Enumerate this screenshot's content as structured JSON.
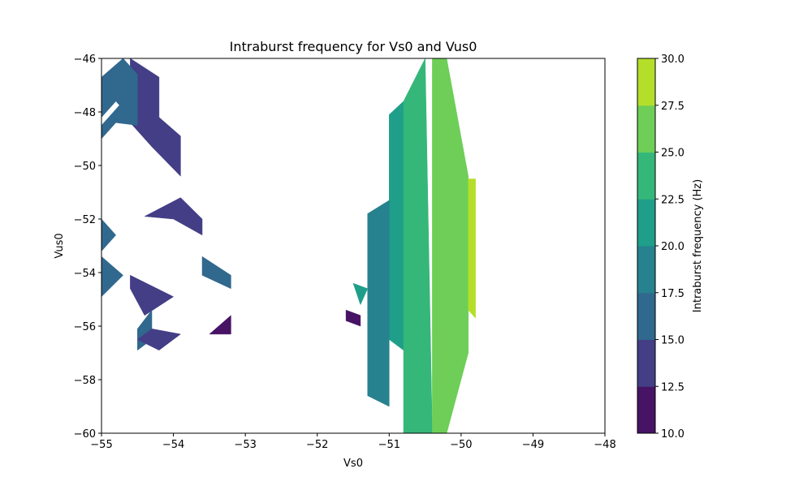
{
  "chart_data": {
    "type": "contourf",
    "title": "Intraburst frequency for Vs0 and Vus0",
    "xlabel": "Vs0",
    "ylabel": "Vus0",
    "xlim": [
      -55,
      -48
    ],
    "ylim": [
      -60,
      -46
    ],
    "xticks": [
      -55,
      -54,
      -53,
      -52,
      -51,
      -50,
      -49,
      -48
    ],
    "yticks": [
      -60,
      -58,
      -56,
      -54,
      -52,
      -50,
      -48,
      -46
    ],
    "grid": false,
    "colorbar": {
      "label": "Intraburst frequency (Hz)",
      "levels": [
        10.0,
        12.5,
        15.0,
        17.5,
        20.0,
        22.5,
        25.0,
        27.5,
        30.0
      ],
      "colors": [
        "#471365",
        "#433e85",
        "#31688e",
        "#26828e",
        "#1f9e89",
        "#35b779",
        "#6ece58",
        "#b5de2b",
        "#dde318"
      ]
    },
    "regions": [
      {
        "level_index": 1,
        "points": [
          [
            -54.6,
            -46.0
          ],
          [
            -54.2,
            -46.7
          ],
          [
            -54.2,
            -48.2
          ],
          [
            -53.9,
            -48.9
          ],
          [
            -53.9,
            -50.4
          ],
          [
            -54.3,
            -49.3
          ],
          [
            -54.6,
            -48.4
          ],
          [
            -54.6,
            -46.3
          ]
        ]
      },
      {
        "level_index": 2,
        "points": [
          [
            -55.0,
            -46.7
          ],
          [
            -54.7,
            -46.0
          ],
          [
            -54.5,
            -46.6
          ],
          [
            -54.5,
            -48.5
          ],
          [
            -54.8,
            -47.6
          ],
          [
            -55.0,
            -48.2
          ]
        ]
      },
      {
        "level_index": 2,
        "points": [
          [
            -55.0,
            -48.5
          ],
          [
            -54.7,
            -47.6
          ],
          [
            -54.5,
            -48.5
          ],
          [
            -54.8,
            -48.4
          ],
          [
            -55.0,
            -49.0
          ]
        ]
      },
      {
        "level_index": 1,
        "points": [
          [
            -54.4,
            -51.9
          ],
          [
            -53.9,
            -51.2
          ],
          [
            -53.6,
            -52.0
          ],
          [
            -53.6,
            -52.6
          ],
          [
            -54.0,
            -52.0
          ]
        ]
      },
      {
        "level_index": 2,
        "points": [
          [
            -55.0,
            -52.0
          ],
          [
            -54.8,
            -52.6
          ],
          [
            -55.0,
            -53.2
          ]
        ]
      },
      {
        "level_index": 2,
        "points": [
          [
            -55.0,
            -53.4
          ],
          [
            -54.7,
            -54.1
          ],
          [
            -55.0,
            -54.9
          ]
        ]
      },
      {
        "level_index": 1,
        "points": [
          [
            -54.6,
            -54.1
          ],
          [
            -54.0,
            -54.9
          ],
          [
            -54.4,
            -55.6
          ],
          [
            -54.6,
            -54.6
          ]
        ]
      },
      {
        "level_index": 2,
        "points": [
          [
            -54.5,
            -56.1
          ],
          [
            -54.3,
            -55.4
          ],
          [
            -54.3,
            -56.5
          ],
          [
            -54.5,
            -56.9
          ]
        ]
      },
      {
        "level_index": 1,
        "points": [
          [
            -54.5,
            -56.5
          ],
          [
            -54.3,
            -56.1
          ],
          [
            -53.9,
            -56.3
          ],
          [
            -54.2,
            -56.9
          ]
        ]
      },
      {
        "level_index": 2,
        "points": [
          [
            -53.6,
            -53.4
          ],
          [
            -53.2,
            -54.1
          ],
          [
            -53.2,
            -54.6
          ],
          [
            -53.6,
            -54.1
          ]
        ]
      },
      {
        "level_index": 0,
        "points": [
          [
            -53.5,
            -56.3
          ],
          [
            -53.2,
            -55.6
          ],
          [
            -53.2,
            -56.3
          ]
        ]
      },
      {
        "level_index": 4,
        "points": [
          [
            -51.0,
            -48.1
          ],
          [
            -50.8,
            -47.6
          ],
          [
            -50.8,
            -56.9
          ],
          [
            -51.0,
            -56.5
          ]
        ]
      },
      {
        "level_index": 5,
        "points": [
          [
            -50.8,
            -47.6
          ],
          [
            -50.5,
            -46.0
          ],
          [
            -50.4,
            -60.0
          ],
          [
            -50.8,
            -60.0
          ]
        ]
      },
      {
        "level_index": 6,
        "points": [
          [
            -50.4,
            -46.0
          ],
          [
            -50.2,
            -46.0
          ],
          [
            -49.9,
            -50.4
          ],
          [
            -49.9,
            -57.0
          ],
          [
            -50.2,
            -60.0
          ],
          [
            -50.4,
            -60.0
          ]
        ]
      },
      {
        "level_index": 7,
        "points": [
          [
            -49.9,
            -50.5
          ],
          [
            -49.8,
            -50.5
          ],
          [
            -49.8,
            -55.7
          ],
          [
            -49.9,
            -55.4
          ]
        ]
      },
      {
        "level_index": 3,
        "points": [
          [
            -51.3,
            -51.8
          ],
          [
            -51.0,
            -51.3
          ],
          [
            -51.0,
            -59.0
          ],
          [
            -51.3,
            -58.6
          ]
        ]
      },
      {
        "level_index": 4,
        "points": [
          [
            -51.5,
            -54.4
          ],
          [
            -51.3,
            -54.6
          ],
          [
            -51.4,
            -55.2
          ]
        ]
      },
      {
        "level_index": 0,
        "points": [
          [
            -51.6,
            -55.4
          ],
          [
            -51.4,
            -55.6
          ],
          [
            -51.4,
            -56.0
          ],
          [
            -51.6,
            -55.8
          ]
        ]
      }
    ]
  }
}
